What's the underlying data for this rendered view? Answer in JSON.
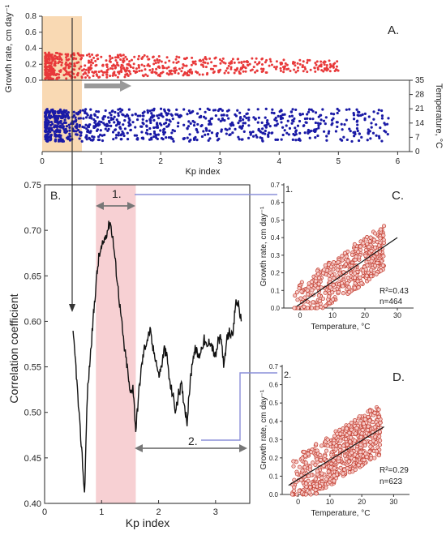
{
  "chart_data": [
    {
      "id": "A",
      "type": "scatter",
      "panel_label": "A.",
      "xlabel": "Kp index",
      "xlim": [
        0,
        6.2
      ],
      "x_ticks": [
        "0",
        "1",
        "2",
        "3",
        "4",
        "5",
        "6"
      ],
      "top": {
        "ylabel": "Growth rate, cm day⁻¹",
        "ylim": [
          0,
          0.8
        ],
        "y_ticks": [
          "0.0",
          "0.2",
          "0.4",
          "0.6",
          "0.8"
        ],
        "color": "#e8393a"
      },
      "bottom": {
        "ylabel": "Temperature, °C",
        "ylim": [
          0,
          35
        ],
        "y_ticks": [
          "0",
          "7",
          "14",
          "21",
          "28",
          "35"
        ],
        "color": "#1a1aa6"
      },
      "highlight_band_x": [
        0,
        0.67
      ],
      "highlight_color": "#f9d9b3",
      "arrow_x": [
        0.67,
        1.4
      ]
    },
    {
      "id": "B",
      "type": "line",
      "panel_label": "B.",
      "xlabel": "Kp index",
      "ylabel": "Correlation coefficient",
      "xlim": [
        0,
        3.6
      ],
      "ylim": [
        0.4,
        0.75
      ],
      "x_ticks": [
        "0",
        "1",
        "2",
        "3"
      ],
      "y_ticks": [
        "0.40",
        "0.45",
        "0.50",
        "0.55",
        "0.60",
        "0.65",
        "0.70",
        "0.75"
      ],
      "highlight_band_x": [
        0.9,
        1.6
      ],
      "highlight_color": "#f7d0d3",
      "series": [
        {
          "x": [
            0.5,
            0.55,
            0.6,
            0.65,
            0.7,
            0.75,
            0.8,
            0.85,
            0.9,
            0.95,
            1.0,
            1.05,
            1.1,
            1.15,
            1.2,
            1.25,
            1.3,
            1.35,
            1.4,
            1.45,
            1.5,
            1.55,
            1.6,
            1.65,
            1.7,
            1.75,
            1.8,
            1.85,
            1.9,
            1.95,
            2.0,
            2.05,
            2.1,
            2.15,
            2.2,
            2.25,
            2.3,
            2.35,
            2.4,
            2.45,
            2.5,
            2.55,
            2.6,
            2.65,
            2.7,
            2.75,
            2.8,
            2.85,
            2.9,
            2.95,
            3.0,
            3.05,
            3.1,
            3.15,
            3.2,
            3.25,
            3.3,
            3.35,
            3.4,
            3.45
          ],
          "y": [
            0.585,
            0.55,
            0.5,
            0.46,
            0.41,
            0.52,
            0.56,
            0.6,
            0.64,
            0.67,
            0.68,
            0.69,
            0.7,
            0.71,
            0.69,
            0.66,
            0.63,
            0.6,
            0.57,
            0.55,
            0.52,
            0.53,
            0.48,
            0.52,
            0.55,
            0.57,
            0.58,
            0.59,
            0.57,
            0.56,
            0.54,
            0.55,
            0.57,
            0.56,
            0.53,
            0.52,
            0.5,
            0.52,
            0.53,
            0.51,
            0.49,
            0.53,
            0.56,
            0.57,
            0.56,
            0.57,
            0.58,
            0.57,
            0.58,
            0.57,
            0.56,
            0.58,
            0.58,
            0.55,
            0.58,
            0.59,
            0.58,
            0.62,
            0.62,
            0.6
          ]
        }
      ],
      "callouts": [
        "1.",
        "2."
      ],
      "arrow_x": [
        0.9,
        1.6
      ],
      "arrow2_x": [
        1.6,
        3.45
      ]
    },
    {
      "id": "C",
      "type": "scatter",
      "panel_label": "C.",
      "inset_label": "1.",
      "xlabel": "Temperature, °C",
      "ylabel": "Growth rate, cm day⁻¹",
      "xlim": [
        -5,
        35
      ],
      "ylim": [
        0,
        0.7
      ],
      "x_ticks": [
        "0",
        "10",
        "20",
        "30"
      ],
      "y_ticks": [
        "0.0",
        "0.1",
        "0.2",
        "0.3",
        "0.4",
        "0.5",
        "0.6",
        "0.7"
      ],
      "fit_line": {
        "x": [
          -1,
          30
        ],
        "y": [
          0.01,
          0.4
        ]
      },
      "annotation": [
        "R²=0.43",
        "n=464"
      ],
      "marker_color": "#c0392b"
    },
    {
      "id": "D",
      "type": "scatter",
      "panel_label": "D.",
      "inset_label": "2.",
      "xlabel": "Temperature, °C",
      "ylabel": "Growth rate, cm day⁻¹",
      "xlim": [
        -5,
        35
      ],
      "ylim": [
        0,
        0.7
      ],
      "x_ticks": [
        "0",
        "10",
        "20",
        "30"
      ],
      "y_ticks": [
        "0.0",
        "0.1",
        "0.2",
        "0.3",
        "0.4",
        "0.5",
        "0.6",
        "0.7"
      ],
      "fit_line": {
        "x": [
          -3,
          27
        ],
        "y": [
          0.05,
          0.37
        ]
      },
      "annotation_r2": "R²=0.29",
      "annotation_n": "n=623",
      "marker_color": "#c0392b"
    }
  ]
}
